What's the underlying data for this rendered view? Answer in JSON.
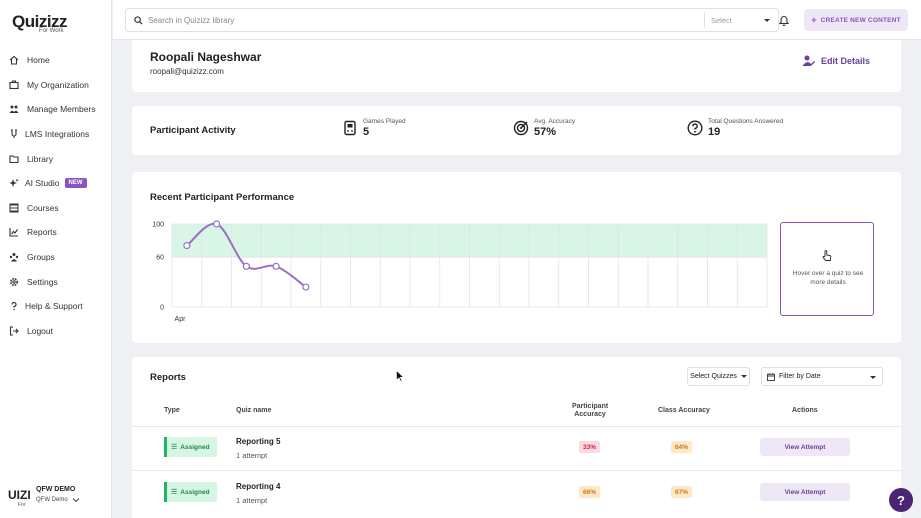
{
  "sidebar": {
    "logo": "Quizizz",
    "logo_sub": "For Work",
    "items": [
      {
        "label": "Home",
        "icon": "home-icon"
      },
      {
        "label": "My Organization",
        "icon": "organization-icon"
      },
      {
        "label": "Manage Members",
        "icon": "members-icon"
      },
      {
        "label": "LMS Integrations",
        "icon": "lms-icon"
      },
      {
        "label": "Library",
        "icon": "library-icon"
      },
      {
        "label": "AI Studio",
        "icon": "sparkle-icon",
        "badge": "NEW"
      },
      {
        "label": "Courses",
        "icon": "courses-icon"
      },
      {
        "label": "Reports",
        "icon": "reports-icon"
      },
      {
        "label": "Groups",
        "icon": "groups-icon"
      },
      {
        "label": "Settings",
        "icon": "gear-icon"
      },
      {
        "label": "Help & Support",
        "icon": "help-icon"
      },
      {
        "label": "Logout",
        "icon": "logout-icon"
      }
    ],
    "org": {
      "logo": "UIZI",
      "logo_sub": "For",
      "name": "QFW DEMO",
      "sub": "QFW Demo"
    }
  },
  "topbar": {
    "search_placeholder": "Search in Quizizz library",
    "select_label": "Select",
    "create_label": "CREATE NEW CONTENT"
  },
  "profile": {
    "name": "Roopali Nageshwar",
    "email": "roopali@quizizz.com",
    "edit_label": "Edit Details"
  },
  "activity": {
    "title": "Participant Activity",
    "stats": [
      {
        "label": "Games Played",
        "value": "5",
        "icon": "gamepad-icon"
      },
      {
        "label": "Avg. Accuracy",
        "value": "57%",
        "icon": "target-icon"
      },
      {
        "label": "Total Questions Answered",
        "value": "19",
        "icon": "question-circle-icon"
      }
    ]
  },
  "chart_data": {
    "type": "line",
    "title": "Recent Participant Performance",
    "x_label": "Apr",
    "y_ticks": [
      "100",
      "60",
      "0"
    ],
    "ylim": [
      0,
      100
    ],
    "band": [
      60,
      100
    ],
    "values": [
      74,
      100,
      49,
      49,
      24
    ],
    "hover_text": "Hover over a quiz to see more details"
  },
  "reports": {
    "title": "Reports",
    "select_quizzes": "Select Quizzes",
    "filter_date": "Filter by Date",
    "columns": {
      "type": "Type",
      "quiz": "Quiz name",
      "participant_accuracy_1": "Participant",
      "participant_accuracy_2": "Accuracy",
      "class_accuracy": "Class Accuracy",
      "actions": "Actions"
    },
    "rows": [
      {
        "type": "Assigned",
        "name": "Reporting 5",
        "attempts": "1 attempt",
        "participant_accuracy": "33%",
        "class_accuracy": "64%",
        "action": "View Attempt"
      },
      {
        "type": "Assigned",
        "name": "Reporting 4",
        "attempts": "1 attempt",
        "participant_accuracy": "66%",
        "class_accuracy": "67%",
        "action": "View Attempt"
      }
    ]
  },
  "help_fab": "?",
  "colors": {
    "brand": "#8854c0",
    "band": "#d8f5e6",
    "line": "#9a6fc7"
  }
}
